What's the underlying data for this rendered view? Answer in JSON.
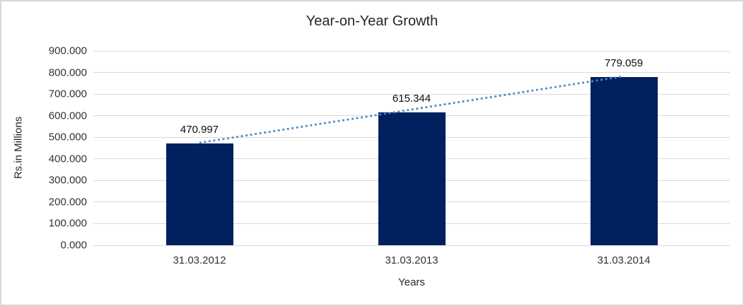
{
  "chart_data": {
    "type": "bar",
    "title": "Year-on-Year Growth",
    "xlabel": "Years",
    "ylabel": "Rs.in Millions",
    "categories": [
      "31.03.2012",
      "31.03.2013",
      "31.03.2014"
    ],
    "values": [
      470.997,
      615.344,
      779.059
    ],
    "data_labels": [
      "470.997",
      "615.344",
      "779.059"
    ],
    "ylim": [
      0,
      900
    ],
    "ytick_step": 100,
    "ytick_labels": [
      "0.000",
      "100.000",
      "200.000",
      "300.000",
      "400.000",
      "500.000",
      "600.000",
      "700.000",
      "800.000",
      "900.000"
    ],
    "grid": true,
    "legend_position": "none",
    "trendline": {
      "type": "linear",
      "style": "dotted",
      "color": "#4e87c8"
    },
    "colors": {
      "bar": "#002060",
      "gridline": "#d9d9d9",
      "axis_text": "#333333",
      "title_text": "#262626",
      "frame_border": "#d7d7d7",
      "background": "#ffffff"
    }
  }
}
